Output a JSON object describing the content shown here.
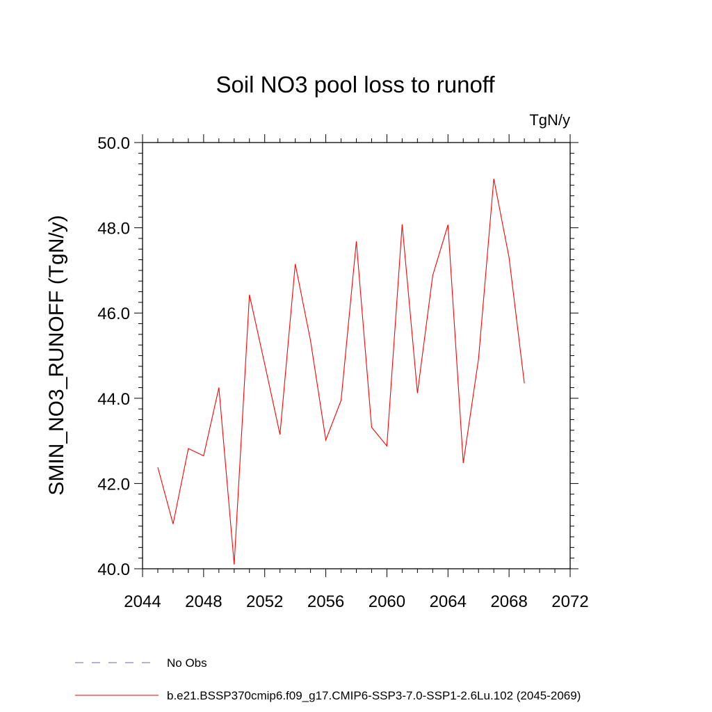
{
  "chart_data": {
    "type": "line",
    "title": "Soil NO3 pool loss to runoff",
    "units_label": "TgN/y",
    "xlabel": "",
    "ylabel": "SMIN_NO3_RUNOFF  (TgN/y)",
    "xlim": [
      2044,
      2072
    ],
    "ylim": [
      40.0,
      50.0
    ],
    "x_ticks": [
      2044,
      2048,
      2052,
      2056,
      2060,
      2064,
      2068,
      2072
    ],
    "x_tick_labels": [
      "2044",
      "2048",
      "2052",
      "2056",
      "2060",
      "2064",
      "2068",
      "2072"
    ],
    "y_ticks": [
      40.0,
      42.0,
      44.0,
      46.0,
      48.0,
      50.0
    ],
    "y_tick_labels": [
      "40.0",
      "42.0",
      "44.0",
      "46.0",
      "48.0",
      "50.0"
    ],
    "grid": false,
    "legend_position": "bottom",
    "series": [
      {
        "name": "No Obs",
        "color": "#6f5fb0",
        "style": "dashed",
        "x": [],
        "y": []
      },
      {
        "name": "b.e21.BSSP370cmip6.f09_g17.CMIP6-SSP3-7.0-SSP1-2.6Lu.102 (2045-2069)",
        "color": "#ff0000",
        "style": "solid",
        "x": [
          2045,
          2046,
          2047,
          2048,
          2049,
          2050,
          2051,
          2052,
          2053,
          2054,
          2055,
          2056,
          2057,
          2058,
          2059,
          2060,
          2061,
          2062,
          2063,
          2064,
          2065,
          2066,
          2067,
          2068,
          2069
        ],
        "y": [
          42.38,
          41.05,
          42.82,
          42.65,
          44.25,
          40.1,
          46.43,
          44.8,
          43.15,
          47.15,
          45.35,
          43.02,
          43.95,
          47.68,
          43.32,
          42.88,
          48.08,
          44.12,
          46.88,
          48.07,
          42.48,
          44.92,
          49.15,
          47.3,
          44.35
        ]
      }
    ]
  }
}
